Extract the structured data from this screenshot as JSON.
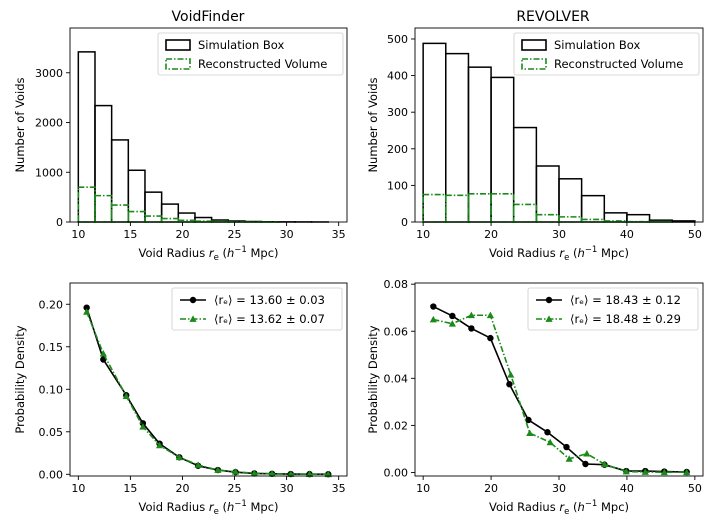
{
  "chart_data": [
    {
      "type": "bar",
      "title": "VoidFinder",
      "xlabel": "Void Radius",
      "xlabel_symbol": "r",
      "xlabel_sub": "e",
      "xlabel_unit_open": " (",
      "xlabel_unit_h": "h",
      "xlabel_unit_exp": "−1",
      "xlabel_unit_close": " Mpc)",
      "ylabel": "Number of Voids",
      "xlim": [
        9.2,
        35.8
      ],
      "ylim": [
        0,
        3900
      ],
      "xticks": [
        10,
        15,
        20,
        25,
        30,
        35
      ],
      "yticks": [
        0,
        1000,
        2000,
        3000
      ],
      "bin_edges": [
        10,
        11.6,
        13.2,
        14.8,
        16.4,
        18,
        19.6,
        21.2,
        22.8,
        24.4,
        26,
        27.6,
        29.2,
        30.8,
        32.4,
        34
      ],
      "series": [
        {
          "name": "Simulation Box",
          "style": "step-black",
          "values": [
            3420,
            2340,
            1650,
            1040,
            600,
            360,
            180,
            90,
            40,
            20,
            10,
            5,
            3,
            2,
            1
          ]
        },
        {
          "name": "Reconstructed Volume",
          "style": "step-green-dashdot",
          "values": [
            700,
            530,
            340,
            210,
            120,
            70,
            35,
            17,
            8,
            4,
            2,
            1,
            0,
            0,
            0
          ]
        }
      ],
      "legend_position": "top-right"
    },
    {
      "type": "bar",
      "title": "REVOLVER",
      "xlabel": "Void Radius",
      "xlabel_symbol": "r",
      "xlabel_sub": "e",
      "xlabel_unit_open": " (",
      "xlabel_unit_h": "h",
      "xlabel_unit_exp": "−1",
      "xlabel_unit_close": " Mpc)",
      "ylabel": "Number of Voids",
      "xlim": [
        8.8,
        51.2
      ],
      "ylim": [
        0,
        530
      ],
      "xticks": [
        10,
        20,
        30,
        40,
        50
      ],
      "yticks": [
        0,
        100,
        200,
        300,
        400,
        500
      ],
      "bin_edges": [
        10,
        13.33,
        16.67,
        20,
        23.33,
        26.67,
        30,
        33.33,
        36.67,
        40,
        43.33,
        46.67,
        50
      ],
      "series": [
        {
          "name": "Simulation Box",
          "style": "step-black",
          "values": [
            488,
            460,
            423,
            395,
            258,
            153,
            118,
            72,
            25,
            20,
            5,
            3
          ]
        },
        {
          "name": "Reconstructed Volume",
          "style": "step-green-dashdot",
          "values": [
            75,
            73,
            77,
            77,
            48,
            20,
            14,
            7,
            3,
            1,
            1,
            0
          ]
        }
      ],
      "legend_position": "top-right"
    },
    {
      "type": "line",
      "title": "",
      "xlabel": "Void Radius",
      "xlabel_symbol": "r",
      "xlabel_sub": "e",
      "xlabel_unit_open": " (",
      "xlabel_unit_h": "h",
      "xlabel_unit_exp": "−1",
      "xlabel_unit_close": " Mpc)",
      "ylabel": "Probability Density",
      "xlim": [
        9.2,
        35.8
      ],
      "ylim": [
        -0.002,
        0.225
      ],
      "xticks": [
        10,
        15,
        20,
        25,
        30,
        35
      ],
      "yticks": [
        0.0,
        0.05,
        0.1,
        0.15,
        0.2
      ],
      "ytick_labels": [
        "0.00",
        "0.05",
        "0.10",
        "0.15",
        "0.20"
      ],
      "x": [
        10.8,
        12.4,
        14.6,
        16.2,
        17.8,
        19.7,
        21.5,
        23.4,
        25.1,
        26.9,
        28.6,
        30.4,
        32.2,
        34
      ],
      "series": [
        {
          "name": "Simulation Box",
          "legend_label": "⟨rₑ⟩ = 13.60 ± 0.03",
          "color": "#000000",
          "marker": "circle",
          "dash": "solid",
          "values": [
            0.196,
            0.135,
            0.093,
            0.06,
            0.036,
            0.02,
            0.01,
            0.005,
            0.0025,
            0.001,
            0.0006,
            0.0003,
            0.0002,
            0.0001
          ]
        },
        {
          "name": "Reconstructed Volume",
          "legend_label": "⟨rₑ⟩ = 13.62 ± 0.07",
          "color": "#1a8a1a",
          "marker": "triangle",
          "dash": "dashdot",
          "values": [
            0.191,
            0.142,
            0.092,
            0.056,
            0.034,
            0.02,
            0.011,
            0.005,
            0.003,
            0.0013,
            0.0007,
            0.0003,
            0.0002,
            0.0001
          ]
        }
      ],
      "legend_position": "top-right"
    },
    {
      "type": "line",
      "title": "",
      "xlabel": "Void Radius",
      "xlabel_symbol": "r",
      "xlabel_sub": "e",
      "xlabel_unit_open": " (",
      "xlabel_unit_h": "h",
      "xlabel_unit_exp": "−1",
      "xlabel_unit_close": " Mpc)",
      "ylabel": "Probability Density",
      "xlim": [
        8.8,
        51.2
      ],
      "ylim": [
        -0.0015,
        0.0805
      ],
      "xticks": [
        10,
        20,
        30,
        40,
        50
      ],
      "yticks": [
        0.0,
        0.02,
        0.04,
        0.06,
        0.08
      ],
      "ytick_labels": [
        "0.00",
        "0.02",
        "0.04",
        "0.06",
        "0.08"
      ],
      "series": [
        {
          "name": "Simulation Box",
          "legend_label": "⟨rₑ⟩ = 18.43 ± 0.12",
          "color": "#000000",
          "marker": "circle",
          "dash": "solid",
          "x": [
            11.5,
            14.3,
            17.1,
            19.9,
            22.7,
            25.5,
            28.3,
            31.1,
            33.9,
            36.7,
            39.9,
            42.7,
            45.5,
            48.8
          ],
          "values": [
            0.0705,
            0.0665,
            0.0612,
            0.0571,
            0.0375,
            0.0223,
            0.0171,
            0.0108,
            0.0036,
            0.0033,
            0.0006,
            0.0006,
            0.0004,
            0.0002
          ]
        },
        {
          "name": "Reconstructed Volume",
          "legend_label": "⟨rₑ⟩ = 18.48 ± 0.29",
          "color": "#1a8a1a",
          "marker": "triangle",
          "dash": "dashdot",
          "x": [
            11.5,
            14.3,
            17.1,
            19.9,
            22.9,
            25.7,
            28.7,
            31.5,
            34.1,
            36.7,
            39.9,
            42.7,
            45.5,
            48.8
          ],
          "values": [
            0.065,
            0.0632,
            0.0668,
            0.0668,
            0.0415,
            0.0167,
            0.0128,
            0.0058,
            0.008,
            0.0035,
            0.0004,
            0.0002,
            0.0001,
            0.0001
          ]
        }
      ],
      "legend_position": "top-right"
    }
  ],
  "legend_labels": {
    "simulation_box": "Simulation Box",
    "reconstructed_volume": "Reconstructed Volume"
  },
  "colors": {
    "black": "#000000",
    "green": "#1a8a1a"
  }
}
